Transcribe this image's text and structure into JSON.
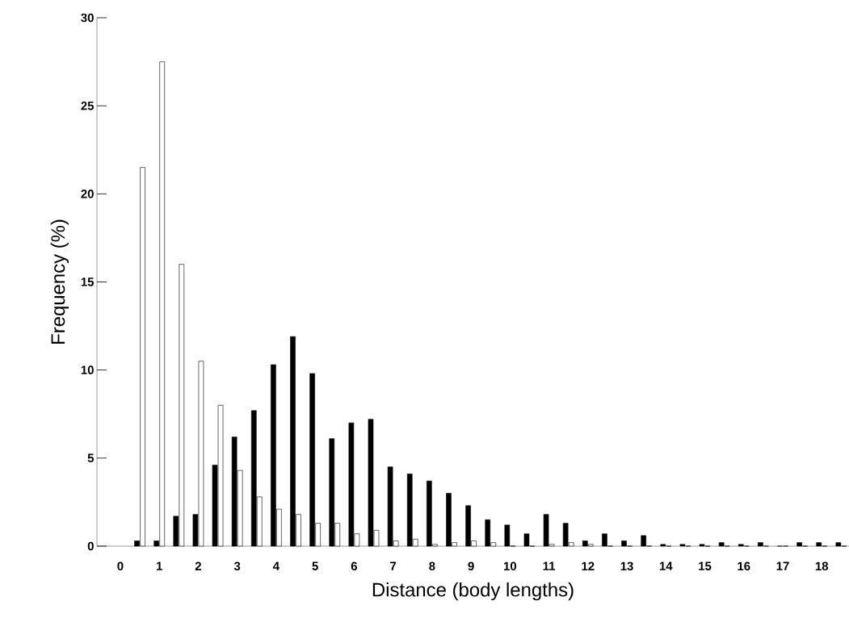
{
  "chart_data": {
    "type": "bar",
    "xlabel": "Distance (body lengths)",
    "ylabel": "Frequency (%)",
    "x": [
      0.5,
      1,
      1.5,
      2,
      2.5,
      3,
      3.5,
      4,
      4.5,
      5,
      5.5,
      6,
      6.5,
      7,
      7.5,
      8,
      8.5,
      9,
      9.5,
      10,
      10.5,
      11,
      11.5,
      12,
      12.5,
      13,
      13.5,
      14,
      14.5,
      15,
      15.5,
      16,
      16.5,
      17,
      17.5,
      18,
      18.5
    ],
    "series": [
      {
        "color": "#000000",
        "values": [
          0.3,
          0.3,
          1.7,
          1.8,
          4.6,
          6.2,
          7.7,
          10.3,
          11.9,
          9.8,
          6.1,
          7.0,
          7.2,
          4.5,
          4.1,
          3.7,
          3.0,
          2.3,
          1.5,
          1.2,
          0.7,
          1.8,
          1.3,
          0.3,
          0.7,
          0.3,
          0.6,
          0.1,
          0.1,
          0.1,
          0.2,
          0.1,
          0.2,
          0,
          0.2,
          0.2,
          0.2
        ]
      },
      {
        "color": "#ffffff",
        "values": [
          21.5,
          27.5,
          16.0,
          10.5,
          8.0,
          4.3,
          2.8,
          2.1,
          1.8,
          1.3,
          1.3,
          0.7,
          0.9,
          0.3,
          0.4,
          0.1,
          0.2,
          0.3,
          0.2,
          0,
          0,
          0.1,
          0.2,
          0.1,
          0,
          0,
          0,
          0,
          0,
          0,
          0,
          0,
          0,
          0,
          0,
          0,
          0
        ]
      }
    ],
    "xlim": [
      -0.6,
      18.7
    ],
    "xticks": [
      0,
      1,
      2,
      3,
      4,
      5,
      6,
      7,
      8,
      9,
      10,
      11,
      12,
      13,
      14,
      15,
      16,
      17,
      18
    ],
    "ylim": [
      0,
      30
    ],
    "yticks": [
      0,
      5,
      10,
      15,
      20,
      25,
      30
    ],
    "grid": false
  }
}
